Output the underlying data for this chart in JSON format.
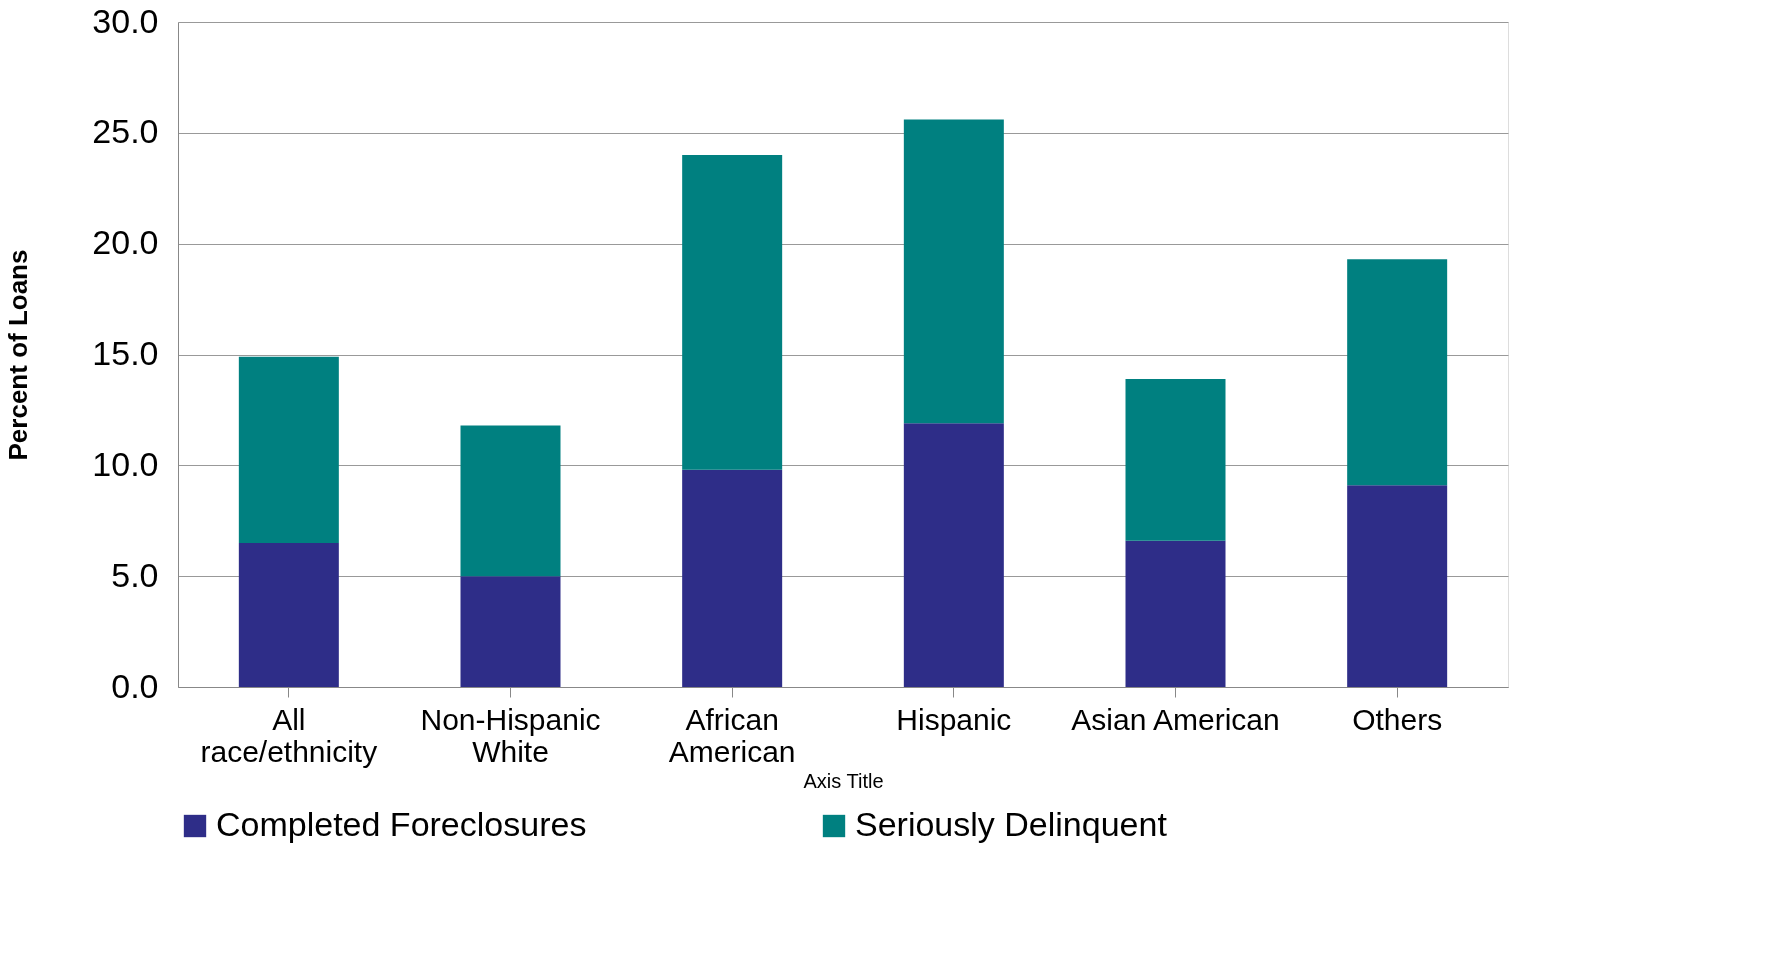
{
  "chart_data": {
    "type": "bar",
    "stacked": true,
    "ylabel": "Percent of Loans",
    "xlabel": "Axis Title",
    "categories": [
      "All race/ethnicity",
      "Non-Hispanic White",
      "African American",
      "Hispanic",
      "Asian American",
      "Others"
    ],
    "series": [
      {
        "name": "Completed Foreclosures",
        "color": "#2e2d88",
        "values": [
          6.5,
          5.0,
          9.8,
          11.9,
          6.6,
          9.1
        ]
      },
      {
        "name": "Seriously Delinquent",
        "color": "#008080",
        "values": [
          8.4,
          6.8,
          14.2,
          13.7,
          7.3,
          10.2
        ]
      }
    ],
    "ylim": [
      0,
      30
    ],
    "yticks": [
      {
        "value": 0,
        "label": "0.0"
      },
      {
        "value": 5,
        "label": "5.0"
      },
      {
        "value": 10,
        "label": "10.0"
      },
      {
        "value": 15,
        "label": "15.0"
      },
      {
        "value": 20,
        "label": "20.0"
      },
      {
        "value": 25,
        "label": "25.0"
      },
      {
        "value": 30,
        "label": "30.0"
      }
    ],
    "grid": "y",
    "legend": "bottom"
  }
}
